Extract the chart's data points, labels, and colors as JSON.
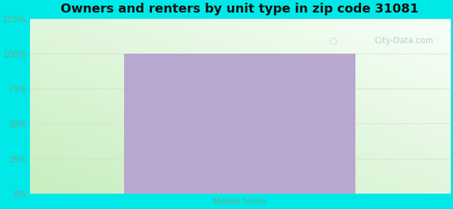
{
  "title": "Owners and renters by unit type in zip code 31081",
  "categories": [
    "Mobile home"
  ],
  "values": [
    100
  ],
  "bar_color": "#b8a8d0",
  "bar_width": 0.55,
  "ylim": [
    0,
    125
  ],
  "yticks": [
    0,
    25,
    50,
    75,
    100,
    125
  ],
  "ytick_labels": [
    "0%",
    "25%",
    "50%",
    "75%",
    "100%",
    "125%"
  ],
  "title_fontsize": 13,
  "outer_bg_color": "#00e8e8",
  "watermark_text": "City-Data.com",
  "tick_color": "#6aaa8a",
  "grid_color": "#d0e0d0",
  "bg_green": "#c8eec0",
  "bg_white": "#f0fdf0",
  "bg_top": "#e8f8f8"
}
